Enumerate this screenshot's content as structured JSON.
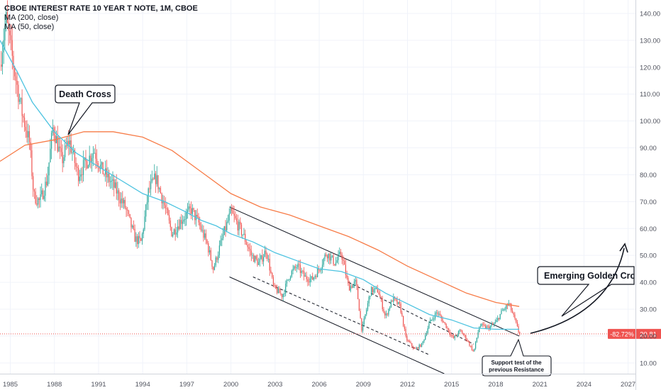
{
  "header": {
    "title": "CBOE INTEREST RATE 10 YEAR T NOTE, 1M, CBOE",
    "ma_long": "MA (200, close)",
    "ma_short": "MA (50, close)"
  },
  "colors": {
    "up": "#26a69a",
    "down": "#ef5350",
    "ma_long": "#f77c48",
    "ma_short": "#4dc3e0",
    "grid": "#f0f3fa",
    "price_line": "#ef5350",
    "badge": "#ef5350"
  },
  "chart_data": {
    "type": "candlestick",
    "title": "CBOE INTEREST RATE 10 YEAR T NOTE, 1M, CBOE",
    "x_tick_labels": [
      "1985",
      "1988",
      "1991",
      "1994",
      "1997",
      "2000",
      "2003",
      "2006",
      "2009",
      "2012",
      "2015",
      "2018",
      "2021",
      "2024",
      "2027"
    ],
    "x_range": [
      1984.3,
      2027.5
    ],
    "y_ticks": [
      10,
      20,
      30,
      40,
      50,
      60,
      70,
      80,
      90,
      100,
      110,
      120,
      130,
      140
    ],
    "y_tick_labels": [
      "10.00",
      "20.00",
      "30.00",
      "40.00",
      "50.00",
      "60.00",
      "70.00",
      "80.00",
      "90.00",
      "100.00",
      "110.00",
      "120.00",
      "130.00",
      "140.00"
    ],
    "y_range": [
      6,
      145
    ],
    "price_path": [
      [
        1984.3,
        121
      ],
      [
        1984.7,
        138
      ],
      [
        1985.3,
        118
      ],
      [
        1985.8,
        103
      ],
      [
        1986.3,
        92
      ],
      [
        1986.6,
        72
      ],
      [
        1987.0,
        70
      ],
      [
        1987.5,
        78
      ],
      [
        1987.9,
        98
      ],
      [
        1988.5,
        85
      ],
      [
        1989.0,
        93
      ],
      [
        1989.6,
        80
      ],
      [
        1990.2,
        85
      ],
      [
        1990.7,
        89
      ],
      [
        1991.2,
        82
      ],
      [
        1992.0,
        76
      ],
      [
        1992.8,
        68
      ],
      [
        1993.5,
        56
      ],
      [
        1993.9,
        55
      ],
      [
        1994.4,
        74
      ],
      [
        1994.9,
        79
      ],
      [
        1995.5,
        68
      ],
      [
        1996.0,
        58
      ],
      [
        1996.6,
        63
      ],
      [
        1997.3,
        67
      ],
      [
        1997.8,
        62
      ],
      [
        1998.4,
        54
      ],
      [
        1998.8,
        45
      ],
      [
        1999.5,
        58
      ],
      [
        2000.0,
        66
      ],
      [
        2000.8,
        58
      ],
      [
        2001.4,
        50
      ],
      [
        2001.9,
        47
      ],
      [
        2002.4,
        52
      ],
      [
        2002.9,
        38
      ],
      [
        2003.5,
        35
      ],
      [
        2004.0,
        43
      ],
      [
        2004.5,
        46
      ],
      [
        2005.0,
        42
      ],
      [
        2005.5,
        41
      ],
      [
        2006.0,
        45
      ],
      [
        2006.5,
        51
      ],
      [
        2007.1,
        47
      ],
      [
        2007.5,
        51
      ],
      [
        2008.0,
        38
      ],
      [
        2008.5,
        40
      ],
      [
        2008.9,
        22
      ],
      [
        2009.5,
        37
      ],
      [
        2010.0,
        37
      ],
      [
        2010.5,
        27
      ],
      [
        2011.0,
        34
      ],
      [
        2011.5,
        31
      ],
      [
        2011.9,
        19
      ],
      [
        2012.5,
        15
      ],
      [
        2013.0,
        17
      ],
      [
        2013.5,
        25
      ],
      [
        2014.0,
        29
      ],
      [
        2014.6,
        24
      ],
      [
        2015.1,
        19
      ],
      [
        2015.6,
        22
      ],
      [
        2016.0,
        19
      ],
      [
        2016.5,
        14
      ],
      [
        2016.9,
        24
      ],
      [
        2017.5,
        23
      ],
      [
        2018.0,
        25
      ],
      [
        2018.4,
        29
      ],
      [
        2018.9,
        32
      ],
      [
        2019.3,
        26
      ],
      [
        2019.6,
        20.81
      ]
    ],
    "ma_long_path": [
      [
        1984.3,
        85
      ],
      [
        1986.0,
        91
      ],
      [
        1988.0,
        93
      ],
      [
        1990.0,
        96
      ],
      [
        1992.0,
        96
      ],
      [
        1994.0,
        94
      ],
      [
        1996.0,
        89
      ],
      [
        1998.0,
        81
      ],
      [
        2000.0,
        73
      ],
      [
        2002.0,
        68
      ],
      [
        2004.0,
        65
      ],
      [
        2006.0,
        61
      ],
      [
        2008.0,
        57
      ],
      [
        2010.0,
        52
      ],
      [
        2012.0,
        46
      ],
      [
        2014.0,
        41
      ],
      [
        2016.0,
        36
      ],
      [
        2018.0,
        32.5
      ],
      [
        2019.6,
        31
      ]
    ],
    "ma_short_path": [
      [
        1984.3,
        130
      ],
      [
        1985.5,
        118
      ],
      [
        1986.5,
        107
      ],
      [
        1988.0,
        96
      ],
      [
        1989.5,
        88
      ],
      [
        1991.0,
        83
      ],
      [
        1992.5,
        78
      ],
      [
        1994.0,
        73
      ],
      [
        1995.5,
        70
      ],
      [
        1997.0,
        66
      ],
      [
        1998.0,
        63
      ],
      [
        1999.0,
        61
      ],
      [
        2000.0,
        58
      ],
      [
        2001.5,
        55
      ],
      [
        2003.0,
        51
      ],
      [
        2004.5,
        48
      ],
      [
        2006.0,
        45
      ],
      [
        2007.5,
        44
      ],
      [
        2009.0,
        41
      ],
      [
        2010.5,
        36
      ],
      [
        2012.0,
        32
      ],
      [
        2013.5,
        28
      ],
      [
        2015.0,
        26
      ],
      [
        2016.5,
        23
      ],
      [
        2018.0,
        22.5
      ],
      [
        2019.6,
        22.5
      ]
    ],
    "current_value": 20.81,
    "current_label": "20.81",
    "change_label": "-82.72%",
    "channel": {
      "upper": [
        [
          1999.9,
          68
        ],
        [
          2019.6,
          20
        ]
      ],
      "lower": [
        [
          1999.9,
          42
        ],
        [
          2014.5,
          6
        ]
      ],
      "mid1": [
        [
          2001.5,
          42
        ],
        [
          2013.5,
          13
        ]
      ],
      "mid2": [
        [
          2008.0,
          40
        ],
        [
          2016.5,
          17
        ]
      ]
    },
    "annotations": {
      "death_cross": "Death Cross",
      "golden_cross": "Emerging Golden Cross",
      "support_line1": "Support test of the",
      "support_line2": "previous Resistance"
    }
  }
}
